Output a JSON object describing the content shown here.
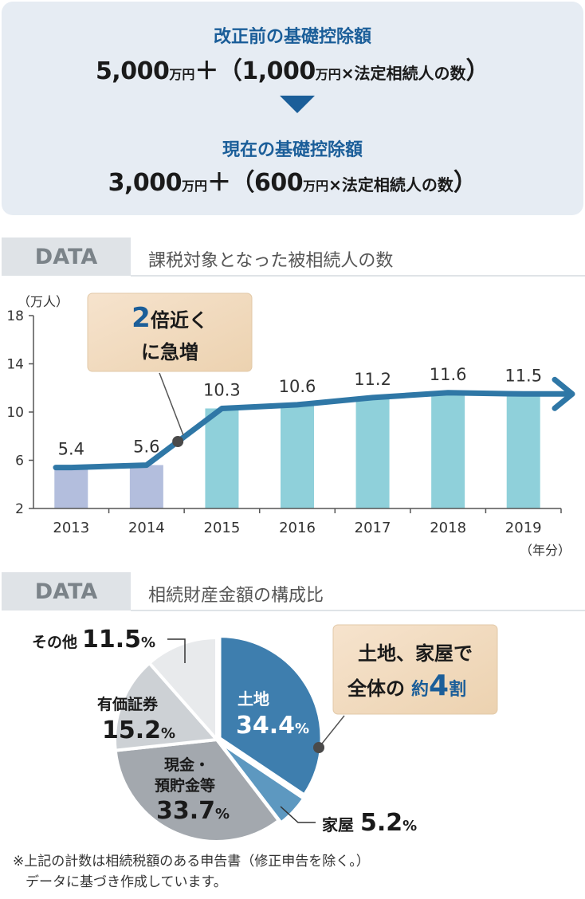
{
  "formula": {
    "before_title": "改正前の基礎控除額",
    "before_base": "5,000",
    "before_unit1": "万円",
    "plus1": "＋（",
    "before_per": "1,000",
    "before_unit2": "万円",
    "times1": "×",
    "heirs1": "法定相続人の数",
    "close1": "）",
    "after_title": "現在の基礎控除額",
    "after_base": "3,000",
    "after_unit1": "万円",
    "plus2": "＋（",
    "after_per": "600",
    "after_unit2": "万円",
    "times2": "×",
    "heirs2": "法定相続人の数",
    "close2": "）"
  },
  "section1": {
    "tag": "DATA",
    "title": "課税対象となった被相続人の数"
  },
  "section2": {
    "tag": "DATA",
    "title": "相続財産金額の構成比"
  },
  "callout1": {
    "line1_num": "2",
    "line1_rest": "倍近く",
    "line2": "に急増"
  },
  "callout2": {
    "line1": "土地、家屋で",
    "line2a": "全体の",
    "line2b": "約",
    "line2c": "4",
    "line2d": "割"
  },
  "note": {
    "line1": "※上記の計数は相続税額のある申告書（修正申告を除く。）",
    "line2": "データに基づき作成しています。"
  },
  "chart_data": [
    {
      "type": "bar",
      "ylabel": "（万人）",
      "xlabel": "（年分）",
      "ylim": [
        2,
        18
      ],
      "yticks": [
        2,
        6,
        10,
        14,
        18
      ],
      "categories": [
        "2013",
        "2014",
        "2015",
        "2016",
        "2017",
        "2018",
        "2019"
      ],
      "values": [
        5.4,
        5.6,
        10.3,
        10.6,
        11.2,
        11.6,
        11.5
      ],
      "value_labels": [
        "5.4",
        "5.6",
        "10.3",
        "10.6",
        "11.2",
        "11.6",
        "11.5"
      ],
      "colors": {
        "before": "#b3bedd",
        "after": "#8fd0da",
        "line": "#2f77a6",
        "axis": "#555555"
      }
    },
    {
      "type": "pie",
      "slices": [
        {
          "label": "土地",
          "value": 34.4,
          "value_text": "34.4",
          "unit": "%",
          "color": "#3e7eae"
        },
        {
          "label": "家屋",
          "value": 5.2,
          "value_text": "5.2",
          "unit": "%",
          "color": "#5d98c0"
        },
        {
          "label": "現金・預貯金等",
          "label_l1": "現金・",
          "label_l2": "預貯金等",
          "value": 33.7,
          "value_text": "33.7",
          "unit": "%",
          "color": "#a3a8ae"
        },
        {
          "label": "有価証券",
          "value": 15.2,
          "value_text": "15.2",
          "unit": "%",
          "color": "#cdd1d5"
        },
        {
          "label": "その他",
          "value": 11.5,
          "value_text": "11.5",
          "unit": "%",
          "color": "#e8eaec"
        }
      ]
    }
  ]
}
